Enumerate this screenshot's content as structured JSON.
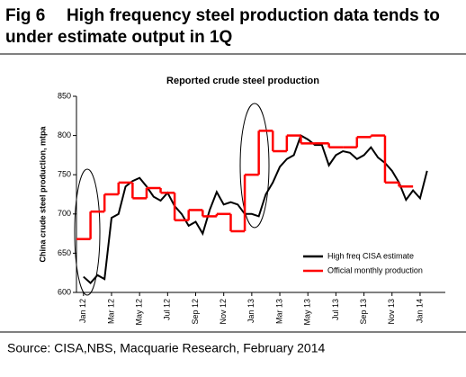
{
  "chart_data": {
    "type": "line",
    "figure_label": "Fig 6",
    "title_lines": [
      "High frequency steel production data tends to",
      "under estimate output in 1Q"
    ],
    "chart_title": "Reported crude steel production",
    "ylabel": "China crude steel production, mtpa",
    "source": "Source: CISA,NBS, Macquarie Research, February 2014",
    "xlim": [
      -0.5,
      25.8
    ],
    "ylim": [
      600,
      850
    ],
    "yticks": [
      600,
      650,
      700,
      750,
      800,
      850
    ],
    "xticks": [
      {
        "value": 0,
        "label": "Jan 12"
      },
      {
        "value": 2,
        "label": "Mar 12"
      },
      {
        "value": 4,
        "label": "May 12"
      },
      {
        "value": 6,
        "label": "Jul 12"
      },
      {
        "value": 8,
        "label": "Sep 12"
      },
      {
        "value": 10,
        "label": "Nov 12"
      },
      {
        "value": 12,
        "label": "Jan 13"
      },
      {
        "value": 14,
        "label": "Mar 13"
      },
      {
        "value": 16,
        "label": "May 13"
      },
      {
        "value": 18,
        "label": "Jul 13"
      },
      {
        "value": 20,
        "label": "Sep 13"
      },
      {
        "value": 22,
        "label": "Nov 13"
      },
      {
        "value": 24,
        "label": "Jan 14"
      }
    ],
    "legend": "lower right",
    "series": [
      {
        "name": "High freq CISA estimate",
        "color": "#000000",
        "style": "line",
        "x": [
          0,
          0.5,
          1,
          1.5,
          2,
          2.5,
          3,
          3.5,
          4,
          4.5,
          5,
          5.5,
          6,
          6.5,
          7,
          7.5,
          8,
          8.5,
          9,
          9.5,
          10,
          10.5,
          11,
          11.5,
          12,
          12.5,
          13,
          13.5,
          14,
          14.5,
          15,
          15.5,
          16,
          16.5,
          17,
          17.5,
          18,
          18.5,
          19,
          19.5,
          20,
          20.5,
          21,
          21.5,
          22,
          22.5,
          23,
          23.5,
          24,
          24.5
        ],
        "values": [
          620,
          612,
          622,
          617,
          695,
          700,
          735,
          742,
          746,
          735,
          722,
          717,
          727,
          710,
          700,
          685,
          690,
          675,
          705,
          728,
          712,
          715,
          712,
          700,
          700,
          697,
          725,
          740,
          760,
          770,
          775,
          800,
          795,
          788,
          788,
          762,
          775,
          780,
          778,
          770,
          775,
          785,
          772,
          765,
          755,
          740,
          718,
          730,
          720,
          755
        ]
      },
      {
        "name": "Official monthly production",
        "color": "#ff0000",
        "style": "step",
        "x": [
          0,
          1,
          2,
          3,
          4,
          5,
          6,
          7,
          8,
          9,
          10,
          11,
          12,
          13,
          14,
          15,
          16,
          17,
          18,
          19,
          20,
          21,
          22,
          23
        ],
        "values": [
          668,
          703,
          725,
          740,
          720,
          733,
          727,
          692,
          705,
          697,
          700,
          678,
          750,
          806,
          780,
          800,
          790,
          790,
          785,
          785,
          798,
          800,
          740,
          735
        ]
      }
    ]
  }
}
